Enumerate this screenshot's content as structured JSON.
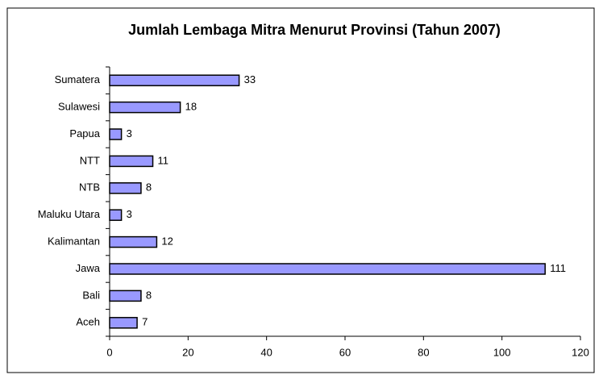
{
  "chart_data": {
    "type": "barh",
    "title": "Jumlah Lembaga Mitra Menurut Provinsi (Tahun 2007)",
    "categories": [
      "Aceh",
      "Bali",
      "Jawa",
      "Kalimantan",
      "Maluku Utara",
      "NTB",
      "NTT",
      "Papua",
      "Sulawesi",
      "Sumatera"
    ],
    "values": [
      7,
      8,
      111,
      12,
      3,
      8,
      11,
      3,
      18,
      33
    ],
    "color": "#9999ff",
    "xlim": [
      0,
      120
    ],
    "xticks": [
      0,
      20,
      40,
      60,
      80,
      100,
      120
    ],
    "grid": false
  }
}
